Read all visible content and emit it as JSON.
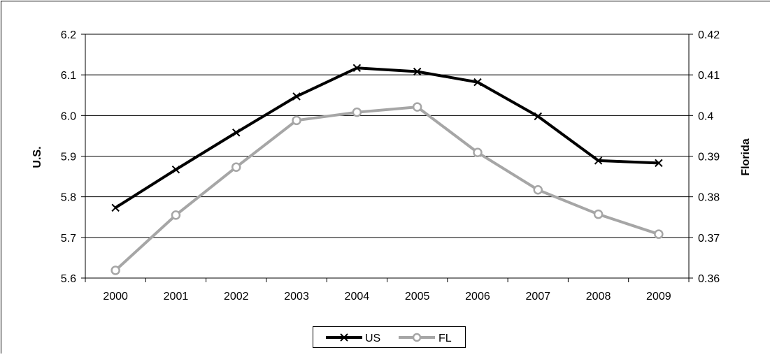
{
  "chart_data": {
    "type": "line",
    "categories": [
      "2000",
      "2001",
      "2002",
      "2003",
      "2004",
      "2005",
      "2006",
      "2007",
      "2008",
      "2009"
    ],
    "ylabel_left": "U.S.",
    "ylabel_right": "Florida",
    "ylim_left": [
      5.6,
      6.2
    ],
    "ylim_right": [
      0.36,
      0.42
    ],
    "yticks_left": [
      "5.6",
      "5.7",
      "5.8",
      "5.9",
      "6.0",
      "6.1",
      "6.2"
    ],
    "yticks_right": [
      "0.36",
      "0.37",
      "0.38",
      "0.39",
      "0.4",
      "0.41",
      "0.42"
    ],
    "grid": "horizontal",
    "legend_position": "bottom",
    "series": [
      {
        "name": "US",
        "axis": "left",
        "color": "#000000",
        "marker": "x",
        "values": [
          5.773,
          5.867,
          5.958,
          6.047,
          6.117,
          6.108,
          6.082,
          5.998,
          5.889,
          5.883
        ]
      },
      {
        "name": "FL",
        "axis": "right",
        "color": "#a6a6a6",
        "marker": "circle",
        "values": [
          0.3619,
          0.3755,
          0.3873,
          0.3988,
          0.4008,
          0.4021,
          0.3909,
          0.3817,
          0.3757,
          0.3708
        ]
      }
    ]
  }
}
